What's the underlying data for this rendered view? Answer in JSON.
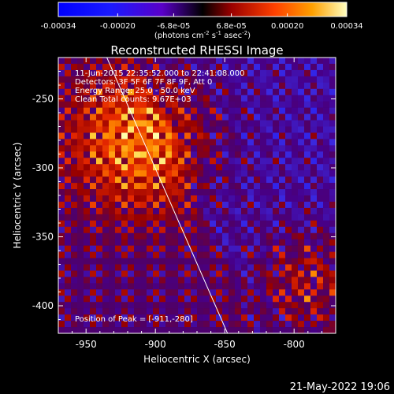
{
  "chart_data": {
    "type": "heatmap",
    "title": "Reconstructed RHESSI Image",
    "xlabel": "Heliocentric X (arcsec)",
    "ylabel": "Heliocentric Y (arcsec)",
    "xlim": [
      -970,
      -770
    ],
    "ylim": [
      -420,
      -220
    ],
    "x_ticks": [
      -950,
      -900,
      -850,
      -800
    ],
    "y_ticks": [
      -250,
      -300,
      -350,
      -400
    ],
    "colorbar": {
      "range": [
        -0.00034,
        0.00034
      ],
      "tick_values": [
        -0.00034,
        -0.0002,
        -6.8e-05,
        6.8e-05,
        0.0002,
        0.00034
      ],
      "tick_labels": [
        "-0.00034",
        "-0.00020",
        "-6.8e-05",
        "6.8e-05",
        "0.00020",
        "0.00034"
      ],
      "unit_label": "(photons cm",
      "unit_exp1": "-2",
      "unit_mid": " s",
      "unit_exp2": "-1",
      "unit_tail": " asec",
      "unit_exp3": "-2",
      "unit_end": ")"
    },
    "annotations": [
      "11-Jun-2015 22:35:52.000 to 22:41:08.000",
      "Detectors: 3F 5F 6F 7F 8F 9F, Att 0",
      "Energy Range: 25.0 - 50.0 keV",
      "Clean     Total counts: 9.67E+03"
    ],
    "peak_label": "Position of Peak = [-911,-280]",
    "peak": [
      -911,
      -280
    ],
    "limb_line": [
      [
        -935,
        -220
      ],
      [
        -848,
        -420
      ]
    ],
    "colors": {
      "background": "#000000",
      "text": "#ffffff",
      "low": "#1010ff",
      "mid": "#400060",
      "high": "#ffff80"
    }
  },
  "footer": {
    "date_stamp": "21-May-2022 19:06"
  }
}
